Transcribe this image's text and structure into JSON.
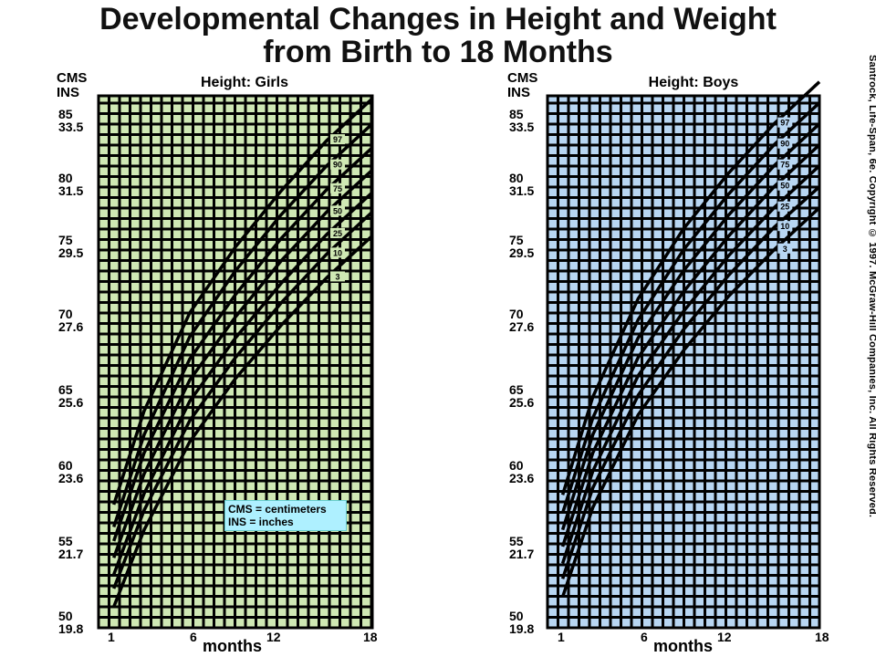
{
  "title_line1": "Developmental Changes in Height and Weight",
  "title_line2": "from Birth to 18 Months",
  "credit": "Santrock, Life-Span, 6e. Copyright © 1997. McGraw-Hill Companies, Inc. All Rights Reserved.",
  "axis": {
    "unit_cm": "CMS",
    "unit_in": "INS",
    "xlabel": "months",
    "x_ticks": [
      "1",
      "6",
      "12",
      "18"
    ],
    "y_ticks": [
      {
        "cm": "85",
        "in": "33.5"
      },
      {
        "cm": "80",
        "in": "31.5"
      },
      {
        "cm": "75",
        "in": "29.5"
      },
      {
        "cm": "70",
        "in": "27.6"
      },
      {
        "cm": "65",
        "in": "25.6"
      },
      {
        "cm": "60",
        "in": "23.6"
      },
      {
        "cm": "55",
        "in": "21.7"
      },
      {
        "cm": "50",
        "in": "19.8"
      }
    ]
  },
  "legend": {
    "line1": "CMS = centimeters",
    "line2": "INS = inches"
  },
  "colors": {
    "girls_bg": "#cfe8b4",
    "boys_bg": "#b8d6f2",
    "grid": "#000000",
    "legend_bg": "#aef0ff"
  },
  "chart_data": [
    {
      "type": "line",
      "title": "Height: Girls",
      "xlabel": "months",
      "ylabel": "CMS / INS",
      "xlim": [
        0,
        18
      ],
      "ylim": [
        49,
        87
      ],
      "x": [
        1,
        3,
        6,
        9,
        12,
        15,
        18
      ],
      "series": [
        {
          "name": "97",
          "values": [
            57.8,
            64.5,
            71.5,
            76.2,
            80.2,
            83.8,
            86.8
          ]
        },
        {
          "name": "90",
          "values": [
            56.2,
            62.8,
            69.8,
            74.5,
            78.5,
            82.0,
            85.0
          ]
        },
        {
          "name": "75",
          "values": [
            55.2,
            61.5,
            68.2,
            72.8,
            76.8,
            80.3,
            83.3
          ]
        },
        {
          "name": "50",
          "values": [
            54.0,
            60.0,
            66.7,
            71.2,
            75.2,
            78.7,
            81.7
          ]
        },
        {
          "name": "25",
          "values": [
            52.8,
            58.6,
            65.2,
            69.7,
            73.6,
            77.1,
            80.1
          ]
        },
        {
          "name": "10",
          "values": [
            51.8,
            57.4,
            63.8,
            68.3,
            72.2,
            75.7,
            78.7
          ]
        },
        {
          "name": "3",
          "values": [
            50.5,
            56.0,
            62.3,
            66.8,
            70.6,
            74.0,
            77.0
          ]
        }
      ]
    },
    {
      "type": "line",
      "title": "Height: Boys",
      "xlabel": "months",
      "ylabel": "CMS / INS",
      "xlim": [
        0,
        18
      ],
      "ylim": [
        49,
        87
      ],
      "x": [
        1,
        3,
        6,
        9,
        12,
        15,
        18
      ],
      "series": [
        {
          "name": "97",
          "values": [
            58.5,
            65.5,
            72.5,
            77.5,
            81.5,
            85.0,
            88.0
          ]
        },
        {
          "name": "90",
          "values": [
            57.2,
            64.0,
            71.0,
            76.0,
            80.0,
            83.5,
            86.5
          ]
        },
        {
          "name": "75",
          "values": [
            56.0,
            62.8,
            69.7,
            74.5,
            78.5,
            82.0,
            85.0
          ]
        },
        {
          "name": "50",
          "values": [
            54.8,
            61.5,
            68.3,
            73.0,
            77.0,
            80.5,
            83.5
          ]
        },
        {
          "name": "25",
          "values": [
            53.6,
            60.2,
            67.0,
            71.6,
            75.6,
            79.0,
            82.0
          ]
        },
        {
          "name": "10",
          "values": [
            52.5,
            59.0,
            65.6,
            70.3,
            74.2,
            77.6,
            80.5
          ]
        },
        {
          "name": "3",
          "values": [
            51.2,
            57.6,
            64.2,
            68.8,
            72.7,
            76.0,
            79.0
          ]
        }
      ]
    }
  ]
}
